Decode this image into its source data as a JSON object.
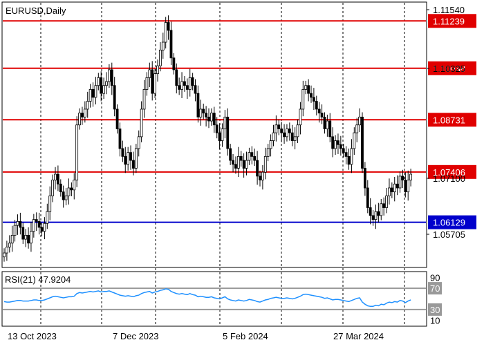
{
  "chart_data": {
    "type": "candlestick",
    "title": "EURUSD,Daily",
    "x_ticks": [
      "13 Oct 2023",
      "7 Dec 2023",
      "5 Feb 2024",
      "27 Mar 2024"
    ],
    "price_ticks": [
      "1.11540",
      "1.10325",
      "1.07100",
      "1.05705"
    ],
    "ylim": [
      1.05,
      1.117
    ],
    "levels": [
      {
        "label": "1.11239",
        "value": 1.11239,
        "color": "#e00000"
      },
      {
        "label": "1.10038",
        "value": 1.10038,
        "color": "#e00000"
      },
      {
        "label": "1.08731",
        "value": 1.08731,
        "color": "#e00000"
      },
      {
        "label": "1.07406",
        "value": 1.07406,
        "color": "#e00000"
      },
      {
        "label": "1.06129",
        "value": 1.06129,
        "color": "#0000cc"
      }
    ],
    "closes": [
      1.0535,
      1.055,
      1.056,
      1.058,
      1.0605,
      1.0615,
      1.06,
      1.057,
      1.058,
      1.056,
      1.059,
      1.062,
      1.0615,
      1.06,
      1.059,
      1.061,
      1.064,
      1.068,
      1.072,
      1.0735,
      1.071,
      1.069,
      1.067,
      1.068,
      1.07,
      1.0695,
      1.072,
      1.086,
      1.089,
      1.088,
      1.09,
      1.092,
      1.095,
      1.093,
      1.096,
      1.098,
      1.094,
      1.096,
      1.097,
      1.1,
      1.096,
      1.09,
      1.085,
      1.08,
      1.078,
      1.076,
      1.079,
      1.077,
      1.075,
      1.08,
      1.083,
      1.09,
      1.095,
      1.098,
      1.1,
      1.094,
      1.099,
      1.101,
      1.105,
      1.107,
      1.112,
      1.11,
      1.103,
      1.1,
      1.096,
      1.095,
      1.097,
      1.096,
      1.095,
      1.098,
      1.096,
      1.094,
      1.088,
      1.09,
      1.089,
      1.088,
      1.087,
      1.089,
      1.086,
      1.084,
      1.082,
      1.085,
      1.088,
      1.08,
      1.077,
      1.076,
      1.075,
      1.078,
      1.077,
      1.075,
      1.077,
      1.079,
      1.078,
      1.077,
      1.073,
      1.072,
      1.074,
      1.078,
      1.08,
      1.082,
      1.084,
      1.086,
      1.085,
      1.084,
      1.083,
      1.085,
      1.084,
      1.082,
      1.083,
      1.086,
      1.09,
      1.095,
      1.096,
      1.094,
      1.093,
      1.092,
      1.09,
      1.089,
      1.088,
      1.085,
      1.087,
      1.083,
      1.08,
      1.082,
      1.081,
      1.08,
      1.079,
      1.078,
      1.076,
      1.08,
      1.084,
      1.086,
      1.088,
      1.075,
      1.07,
      1.065,
      1.063,
      1.062,
      1.064,
      1.063,
      1.066,
      1.065,
      1.068,
      1.07,
      1.069,
      1.071,
      1.07,
      1.073,
      1.072,
      1.069,
      1.072,
      1.0735
    ],
    "rsi": {
      "label": "RSI(21) 47.9204",
      "ylim": [
        0,
        100
      ],
      "ticks": [
        "90",
        "70",
        "30",
        "10"
      ],
      "levels": [
        70,
        30
      ],
      "values": [
        45,
        44,
        44,
        45,
        46,
        47,
        47,
        46,
        46,
        46,
        47,
        48,
        48,
        47,
        47,
        48,
        50,
        52,
        54,
        55,
        54,
        53,
        52,
        53,
        54,
        54,
        55,
        60,
        62,
        61,
        62,
        63,
        64,
        63,
        64,
        65,
        63,
        64,
        64,
        65,
        63,
        61,
        59,
        57,
        56,
        55,
        56,
        55,
        54,
        56,
        57,
        60,
        62,
        63,
        64,
        61,
        63,
        64,
        66,
        67,
        69,
        68,
        64,
        62,
        60,
        59,
        60,
        59,
        58,
        60,
        58,
        57,
        54,
        55,
        54,
        53,
        53,
        54,
        52,
        51,
        50,
        52,
        54,
        50,
        48,
        47,
        46,
        48,
        47,
        46,
        47,
        49,
        48,
        47,
        45,
        44,
        46,
        48,
        49,
        51,
        52,
        53,
        52,
        51,
        51,
        52,
        51,
        50,
        51,
        53,
        55,
        58,
        59,
        58,
        57,
        56,
        55,
        54,
        53,
        51,
        52,
        50,
        48,
        49,
        49,
        48,
        47,
        46,
        45,
        47,
        49,
        51,
        52,
        44,
        40,
        37,
        36,
        36,
        38,
        37,
        40,
        39,
        42,
        44,
        43,
        45,
        44,
        47,
        46,
        43,
        46,
        48
      ]
    }
  }
}
